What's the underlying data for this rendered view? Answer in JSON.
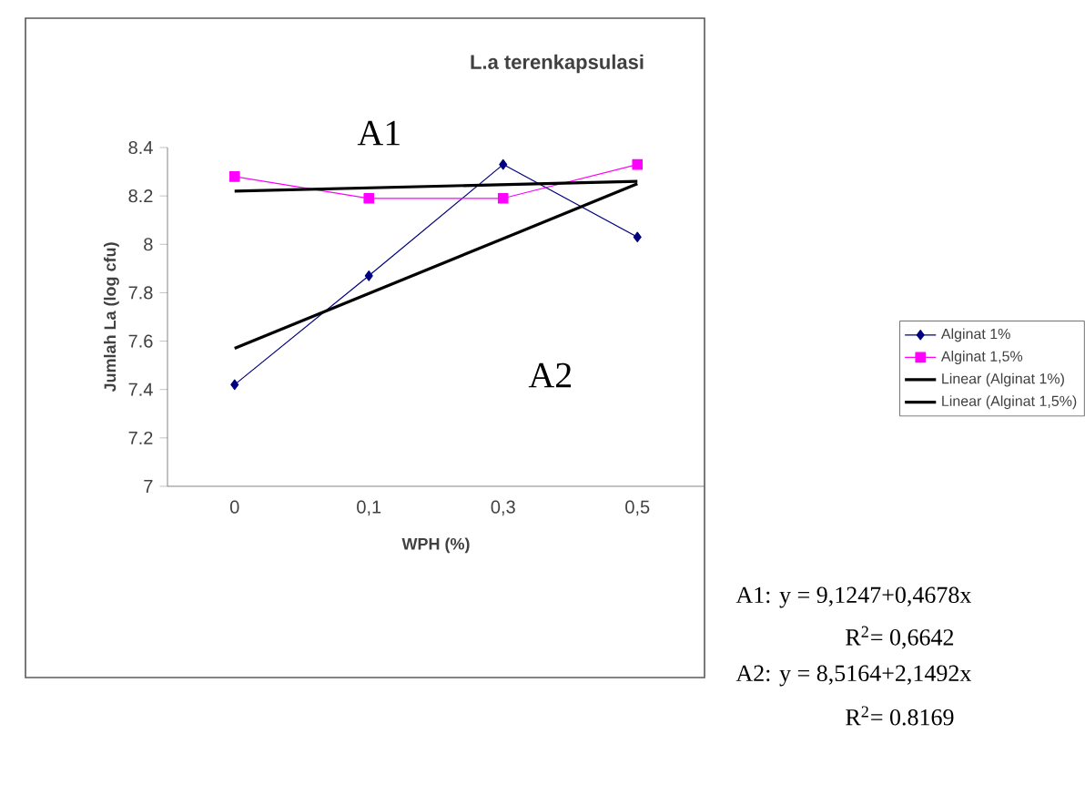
{
  "chart_data": {
    "type": "line",
    "title": "L.a terenkapsulasi",
    "xlabel": "WPH (%)",
    "ylabel": "Jumlah La (log cfu)",
    "categories": [
      "0",
      "0,1",
      "0,3",
      "0,5"
    ],
    "series": [
      {
        "name": "Alginat 1%",
        "color": "#000080",
        "marker": "diamond",
        "values": [
          7.42,
          7.87,
          8.33,
          8.03
        ]
      },
      {
        "name": "Alginat 1,5%",
        "color": "#ff00ff",
        "marker": "square",
        "values": [
          8.28,
          8.19,
          8.19,
          8.33
        ]
      },
      {
        "name": "Linear (Alginat 1%)",
        "color": "#000000",
        "marker": "none",
        "values": [
          7.57,
          null,
          null,
          8.25
        ]
      },
      {
        "name": "Linear (Alginat 1,5%)",
        "color": "#000000",
        "marker": "none",
        "values": [
          8.22,
          null,
          null,
          8.26
        ]
      }
    ],
    "ylim": [
      7,
      8.4
    ],
    "yticks": [
      7,
      7.2,
      7.4,
      7.6,
      7.8,
      8,
      8.2,
      8.4
    ],
    "grid": false,
    "legend": "right",
    "annotations": [
      "A1",
      "A2",
      "A1: y = 9,1247+0,4678x",
      "R$^{2}$= 0,6642",
      "A2: y = 8,5164+2,1492x",
      "R$^{2}$= 0.8169"
    ]
  }
}
